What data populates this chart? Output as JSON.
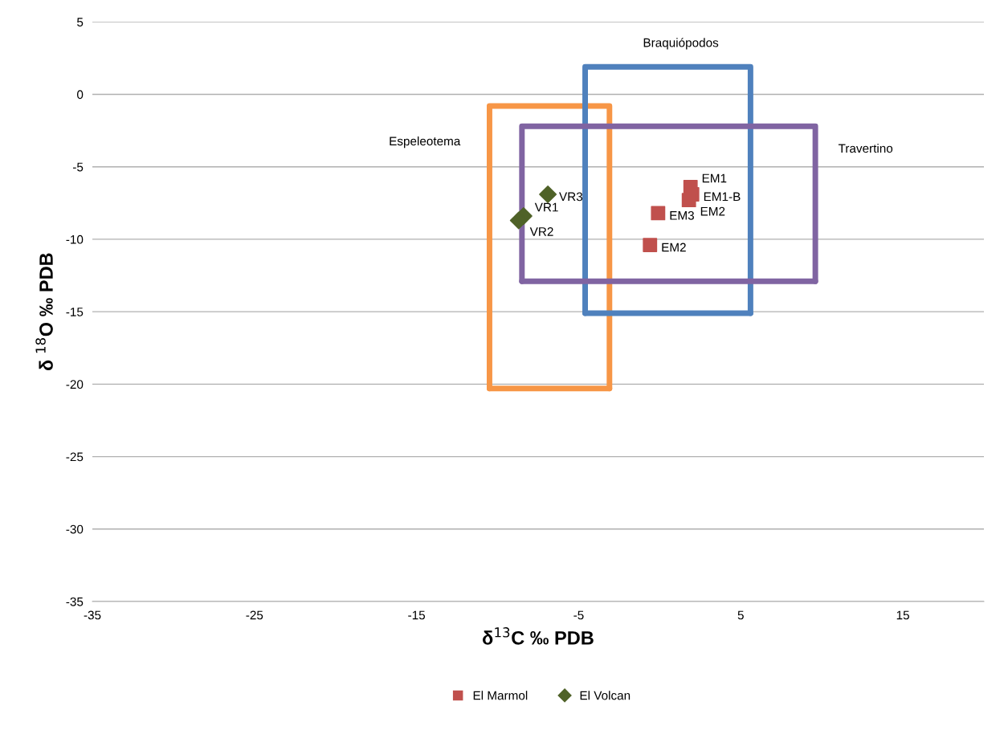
{
  "chart_data": {
    "type": "line",
    "xlabel": "δ$^{13}$C ‰ PDB",
    "ylabel": "δ $^{18}$O ‰ PDB",
    "xlim": [
      -35,
      20
    ],
    "xticks": [
      -35,
      -25,
      -15,
      -5,
      5,
      15
    ],
    "ylim": [
      -35,
      5
    ],
    "yticks": [
      -35,
      -30,
      -25,
      -20,
      -15,
      -10,
      -5,
      0,
      5
    ],
    "grid": "y",
    "legend": "bottom",
    "series": [
      {
        "name": "Espeleotema",
        "color": "#f79646",
        "marker": "none",
        "x": [
          -10.5,
          -10.5,
          -3.1,
          -3.1
        ],
        "values": [
          -20.3,
          -0.8,
          -0.8,
          -20.3
        ]
      },
      {
        "name": "Braquiópodos",
        "color": "#4f81bd",
        "marker": "none",
        "x": [
          -4.6,
          -4.6,
          5.6,
          5.6
        ],
        "values": [
          -15.1,
          1.9,
          1.9,
          -15.1
        ]
      },
      {
        "name": "Travertino",
        "color": "#8064a2",
        "marker": "none",
        "x": [
          -8.5,
          -8.5,
          9.6,
          9.6
        ],
        "values": [
          -12.9,
          -2.2,
          -2.2,
          -12.9
        ]
      },
      {
        "color": "#f79646",
        "marker": "none",
        "x": [
          -10.5,
          -3.1
        ],
        "values": [
          -20.3,
          -20.3
        ]
      },
      {
        "color": "#4f81bd",
        "marker": "none",
        "x": [
          -4.6,
          5.6
        ],
        "values": [
          -15.1,
          -15.1
        ]
      },
      {
        "color": "#8064a2",
        "marker": "none",
        "x": [
          -8.5,
          9.6
        ],
        "values": [
          -12.9,
          -12.9
        ]
      },
      {
        "type": "scatter",
        "name": "El Marmol",
        "color": "#c0504d",
        "marker": "square",
        "x": [
          1.9,
          2.0,
          1.8,
          -0.1,
          -0.6
        ],
        "values": [
          -6.4,
          -6.9,
          -7.3,
          -8.2,
          -10.4
        ],
        "value_labels": [
          "EM1",
          "EM1-B",
          "EM2",
          "EM3",
          "EM2"
        ]
      },
      {
        "type": "scatter",
        "name": "El Volcan",
        "color": "#4f6228",
        "marker": "diamond",
        "x": [
          -6.9,
          -8.4,
          -8.7
        ],
        "values": [
          -6.9,
          -8.4,
          -8.7
        ],
        "value_labels": [
          "VR3",
          "VR1",
          "VR2"
        ]
      }
    ]
  }
}
